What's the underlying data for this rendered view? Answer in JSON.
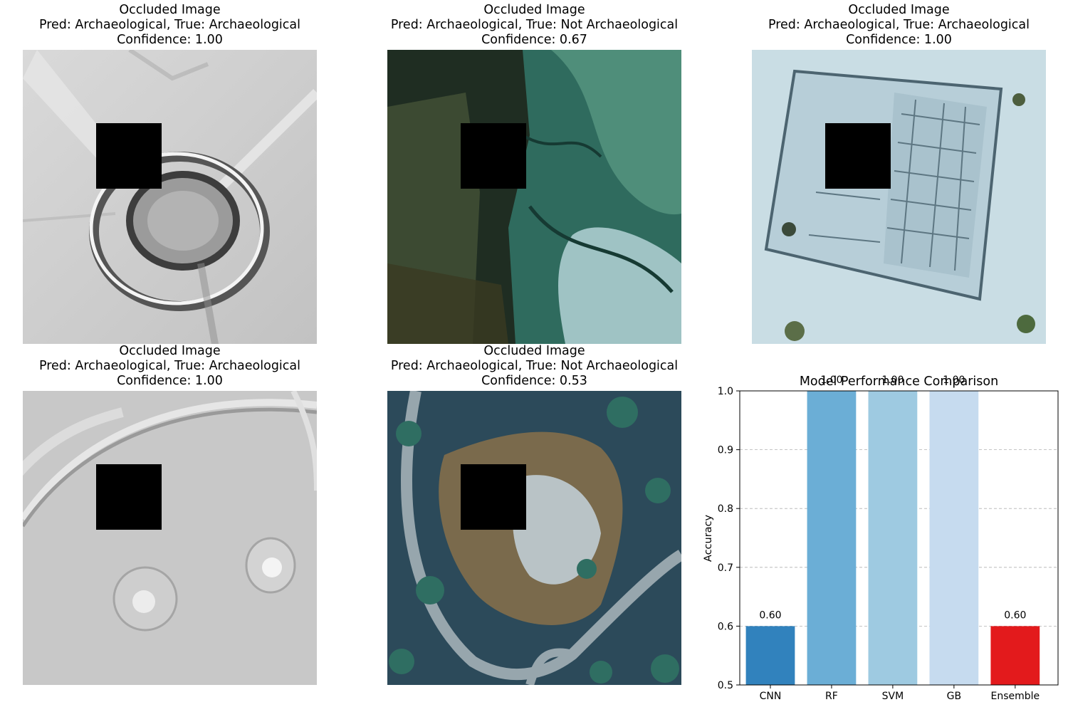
{
  "panels": [
    {
      "title": "Occluded Image",
      "pred_line": "Pred: Archaeological, True: Archaeological",
      "confidence_line": "Confidence: 1.00",
      "image": "grayscale hillshade aerial image of a circular ringfort earthwork"
    },
    {
      "title": "Occluded Image",
      "pred_line": "Pred: Archaeological, True: Not Archaeological",
      "confidence_line": "Confidence: 0.67",
      "image": "aerial photo of green tidal marsh with dark water and reeds"
    },
    {
      "title": "Occluded Image",
      "pred_line": "Pred: Archaeological, True: Archaeological",
      "confidence_line": "Confidence: 1.00",
      "image": "pale blue aerial image of a square walled ancient city ruin"
    },
    {
      "title": "Occluded Image",
      "pred_line": "Pred: Archaeological, True: Archaeological",
      "confidence_line": "Confidence: 1.00",
      "image": "grayscale hillshade of a field with curved banks and two round mounds"
    },
    {
      "title": "Occluded Image",
      "pred_line": "Pred: Archaeological, True: Not Archaeological",
      "confidence_line": "Confidence: 0.53",
      "image": "aerial photo of a winding dirt road around rocky ground with trees"
    }
  ],
  "chart_data": {
    "type": "bar",
    "title": "Model Performance Comparison",
    "xlabel": "",
    "ylabel": "Accuracy",
    "categories": [
      "CNN",
      "RF",
      "SVM",
      "GB",
      "Ensemble"
    ],
    "values": [
      0.6,
      1.0,
      1.0,
      1.0,
      0.6
    ],
    "value_labels": [
      "0.60",
      "1.00",
      "1.00",
      "1.00",
      "0.60"
    ],
    "colors": [
      "#3182bd",
      "#6baed6",
      "#9ecae1",
      "#c6dbef",
      "#e31a1c"
    ],
    "ylim": [
      0.5,
      1.0
    ],
    "yticks": [
      "0.5",
      "0.6",
      "0.7",
      "0.8",
      "0.9",
      "1.0"
    ],
    "grid": "y-dashed",
    "legend": "none"
  }
}
